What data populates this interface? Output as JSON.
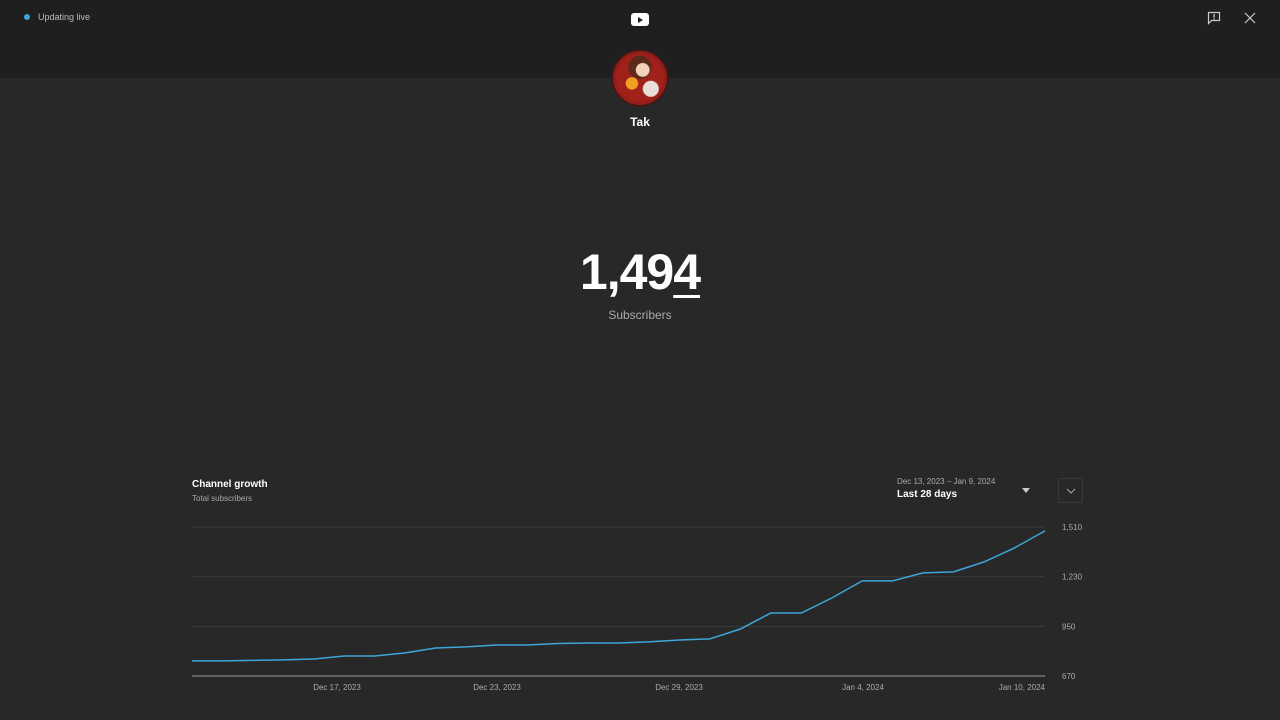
{
  "topbar": {
    "status_text": "Updating live",
    "status_color": "#3ea6d8",
    "logo": "youtube-logo-icon",
    "icons": [
      "feedback-icon",
      "close-icon"
    ]
  },
  "channel": {
    "name": "Tak",
    "avatar": "channel-avatar"
  },
  "counter": {
    "value_main": "1,49",
    "value_last": "4",
    "label": "Subscribers"
  },
  "growth": {
    "title": "Channel growth",
    "subtitle": "Total subscribers",
    "range_dates": "Dec 13, 2023 – Jan 9, 2024",
    "range_label": "Last 28 days"
  },
  "chart_data": {
    "type": "line",
    "title": "Channel growth",
    "subtitle": "Total subscribers",
    "xlabel": "",
    "ylabel": "Total subscribers",
    "ylim": [
      670,
      1510
    ],
    "yticks": [
      "1,510",
      "1,230",
      "950",
      "670"
    ],
    "ytick_values": [
      1510,
      1230,
      950,
      670
    ],
    "xticks": [
      "Dec 17, 2023",
      "Dec 23, 2023",
      "Dec 29, 2023",
      "Jan 4, 2024",
      "Jan 10, 2024"
    ],
    "grid": true,
    "legend": "none",
    "line_color": "#3ea6d8",
    "series": [
      {
        "name": "Total subscribers",
        "x": [
          "Dec 13",
          "Dec 14",
          "Dec 15",
          "Dec 16",
          "Dec 17",
          "Dec 18",
          "Dec 19",
          "Dec 20",
          "Dec 21",
          "Dec 22",
          "Dec 23",
          "Dec 24",
          "Dec 25",
          "Dec 26",
          "Dec 27",
          "Dec 28",
          "Dec 29",
          "Dec 30",
          "Dec 31",
          "Jan 1",
          "Jan 2",
          "Jan 3",
          "Jan 4",
          "Jan 5",
          "Jan 6",
          "Jan 7",
          "Jan 8",
          "Jan 9",
          "Jan 10"
        ],
        "values": [
          755,
          755,
          758,
          761,
          766,
          783,
          783,
          800,
          828,
          834,
          845,
          845,
          853,
          856,
          856,
          862,
          873,
          879,
          935,
          1025,
          1025,
          1110,
          1206,
          1206,
          1251,
          1257,
          1313,
          1392,
          1488
        ]
      }
    ]
  }
}
